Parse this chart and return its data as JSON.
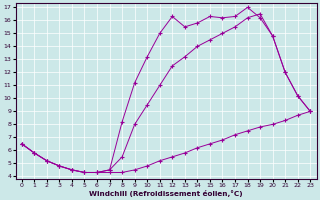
{
  "xlabel": "Windchill (Refroidissement éolien,°C)",
  "background_color": "#cce8e8",
  "line_color": "#990099",
  "xlim": [
    -0.5,
    23.5
  ],
  "ylim": [
    3.8,
    17.3
  ],
  "yticks": [
    4,
    5,
    6,
    7,
    8,
    9,
    10,
    11,
    12,
    13,
    14,
    15,
    16,
    17
  ],
  "xticks": [
    0,
    1,
    2,
    3,
    4,
    5,
    6,
    7,
    8,
    9,
    10,
    11,
    12,
    13,
    14,
    15,
    16,
    17,
    18,
    19,
    20,
    21,
    22,
    23
  ],
  "series1_x": [
    0,
    1,
    2,
    3,
    4,
    5,
    6,
    7,
    8,
    9,
    10,
    11,
    12,
    13,
    14,
    15,
    16,
    17,
    18,
    19,
    20,
    21,
    22,
    23
  ],
  "series1_y": [
    6.5,
    5.8,
    5.2,
    4.8,
    4.5,
    4.3,
    4.3,
    4.3,
    4.3,
    4.5,
    4.8,
    5.2,
    5.5,
    5.8,
    6.2,
    6.5,
    6.8,
    7.2,
    7.5,
    7.8,
    8.0,
    8.3,
    8.7,
    9.0
  ],
  "series2_x": [
    0,
    1,
    2,
    3,
    4,
    5,
    6,
    7,
    8,
    9,
    10,
    11,
    12,
    13,
    14,
    15,
    16,
    17,
    18,
    19,
    20,
    21,
    22,
    23
  ],
  "series2_y": [
    6.5,
    5.8,
    5.2,
    4.8,
    4.5,
    4.3,
    4.3,
    4.5,
    5.5,
    8.0,
    9.5,
    11.0,
    12.5,
    13.2,
    14.0,
    14.5,
    15.0,
    15.5,
    16.2,
    16.5,
    14.8,
    12.0,
    10.2,
    9.0
  ],
  "series3_x": [
    0,
    1,
    2,
    3,
    4,
    5,
    6,
    7,
    8,
    9,
    10,
    11,
    12,
    13,
    14,
    15,
    16,
    17,
    18,
    19,
    20,
    21,
    22,
    23
  ],
  "series3_y": [
    6.5,
    5.8,
    5.2,
    4.8,
    4.5,
    4.3,
    4.3,
    4.5,
    8.2,
    11.2,
    13.2,
    15.0,
    16.3,
    15.5,
    15.8,
    16.3,
    16.2,
    16.3,
    17.0,
    16.2,
    14.8,
    12.0,
    10.2,
    9.0
  ]
}
